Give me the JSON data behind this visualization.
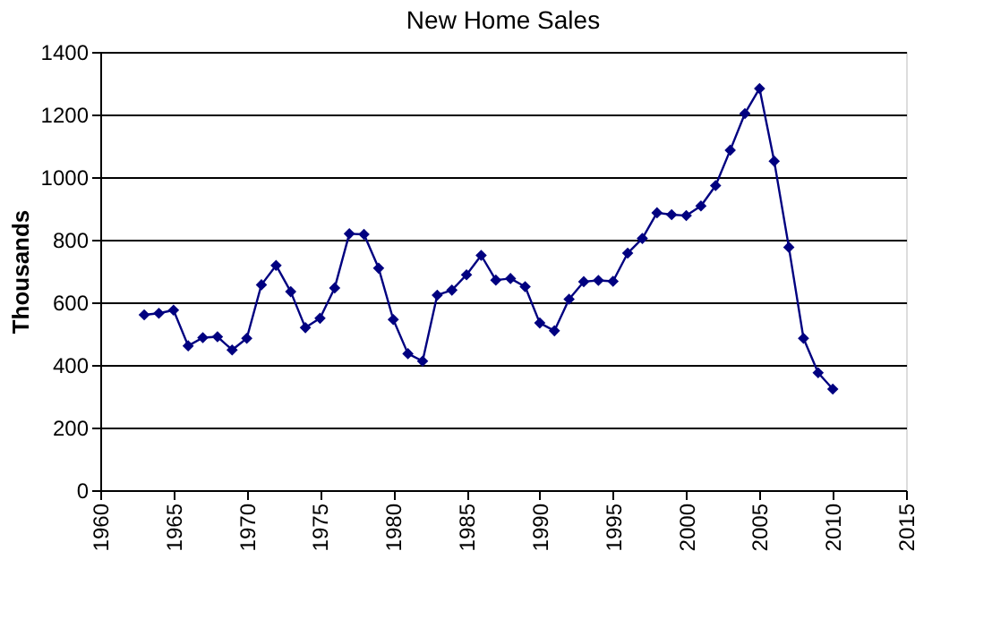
{
  "chart_data": {
    "type": "line",
    "title": "New Home Sales",
    "ylabel": "Thousands",
    "x": [
      1963,
      1964,
      1965,
      1966,
      1967,
      1968,
      1969,
      1970,
      1971,
      1972,
      1973,
      1974,
      1975,
      1976,
      1977,
      1978,
      1979,
      1980,
      1981,
      1982,
      1983,
      1984,
      1985,
      1986,
      1987,
      1988,
      1989,
      1990,
      1991,
      1992,
      1993,
      1994,
      1995,
      1996,
      1997,
      1998,
      1999,
      2000,
      2001,
      2002,
      2003,
      2004,
      2005,
      2006,
      2007,
      2008,
      2009,
      2010
    ],
    "series": [
      {
        "color": "#000080",
        "values": [
          560,
          565,
          575,
          461,
          487,
          490,
          448,
          485,
          656,
          718,
          634,
          519,
          549,
          646,
          819,
          817,
          709,
          545,
          436,
          412,
          623,
          639,
          688,
          750,
          671,
          676,
          650,
          534,
          509,
          610,
          666,
          670,
          667,
          757,
          804,
          886,
          880,
          877,
          908,
          973,
          1086,
          1203,
          1283,
          1051,
          776,
          485,
          375,
          323
        ]
      }
    ],
    "xlim": [
      1960,
      2015
    ],
    "xticks": [
      1960,
      1965,
      1970,
      1975,
      1980,
      1985,
      1990,
      1995,
      2000,
      2005,
      2010,
      2015
    ],
    "ylim": [
      0,
      1400
    ],
    "yticks": [
      0,
      200,
      400,
      600,
      800,
      1000,
      1200,
      1400
    ],
    "grid": "y",
    "marker": "diamond",
    "line_style": "solid"
  }
}
